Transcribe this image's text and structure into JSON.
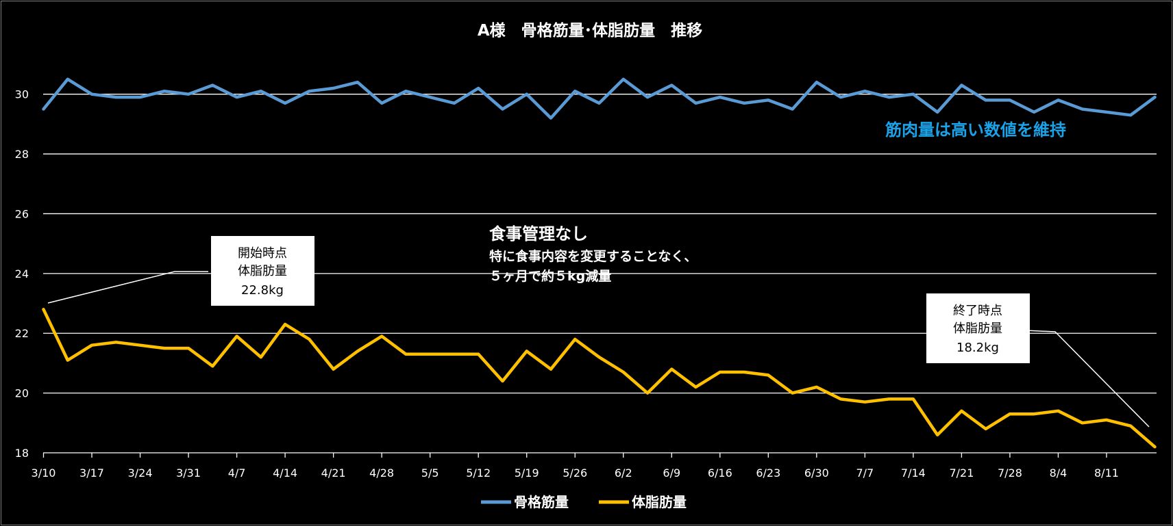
{
  "chart_data": {
    "type": "line",
    "title": "A様　骨格筋量･体脂肪量　推移",
    "xlabel": "",
    "ylabel": "",
    "ylim": [
      18,
      31
    ],
    "yticks": [
      18,
      20,
      22,
      24,
      26,
      28,
      30
    ],
    "grid": true,
    "legend_position": "bottom",
    "x_tick_labels": [
      "3/10",
      "3/17",
      "3/24",
      "3/31",
      "4/7",
      "4/14",
      "4/21",
      "4/28",
      "5/5",
      "5/12",
      "5/19",
      "5/26",
      "6/2",
      "6/9",
      "6/16",
      "6/23",
      "6/30",
      "7/7",
      "7/14",
      "7/21",
      "7/28",
      "8/4",
      "8/11"
    ],
    "series": [
      {
        "name": "骨格筋量",
        "color": "#5b9bd5",
        "values": [
          29.5,
          30.5,
          30.0,
          29.9,
          29.9,
          30.1,
          30.0,
          30.3,
          29.9,
          30.1,
          29.7,
          30.1,
          30.2,
          30.4,
          29.7,
          30.1,
          29.9,
          29.7,
          30.2,
          29.5,
          30.0,
          29.2,
          30.1,
          29.7,
          30.5,
          29.9,
          30.3,
          29.7,
          29.9,
          29.7,
          29.8,
          29.5,
          30.4,
          29.9,
          30.1,
          29.9,
          30.0,
          29.4,
          30.3,
          29.8,
          29.8,
          29.4,
          29.8,
          29.5,
          29.4,
          29.3,
          29.9
        ]
      },
      {
        "name": "体脂肪量",
        "color": "#ffc000",
        "values": [
          22.8,
          21.1,
          21.6,
          21.7,
          21.6,
          21.5,
          21.5,
          20.9,
          21.9,
          21.2,
          22.3,
          21.8,
          20.8,
          21.4,
          21.9,
          21.3,
          21.3,
          21.3,
          21.3,
          20.4,
          21.4,
          20.8,
          21.8,
          21.2,
          20.7,
          20.0,
          20.8,
          20.2,
          20.7,
          20.7,
          20.6,
          20.0,
          20.2,
          19.8,
          19.7,
          19.8,
          19.8,
          18.6,
          19.4,
          18.8,
          19.3,
          19.3,
          19.4,
          19.0,
          19.1,
          18.9,
          18.2
        ]
      }
    ],
    "annotations": {
      "muscle_note": {
        "text": "筋肉量は高い数値を維持",
        "color": "#1aa3e8"
      },
      "diet_note": {
        "title": "食事管理なし",
        "line1": "特に食事内容を変更することなく、",
        "line2": "５ヶ月で約５kg減量"
      },
      "start_callout": {
        "line1": "開始時点",
        "line2": "体脂肪量",
        "line3": "22.8kg"
      },
      "end_callout": {
        "line1": "終了時点",
        "line2": "体脂肪量",
        "line3": "18.2kg"
      }
    }
  }
}
